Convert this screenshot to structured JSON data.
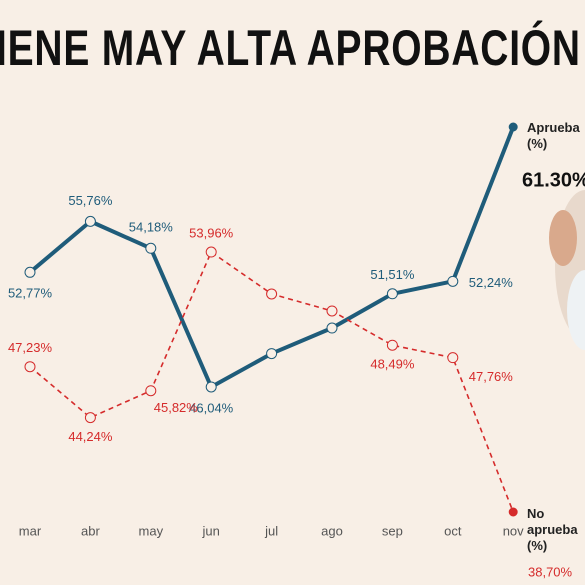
{
  "chart_data": {
    "type": "line",
    "title": "IENE MAY ALTA APROBACIÓN",
    "categories": [
      "mar",
      "abr",
      "may",
      "jun",
      "jul",
      "ago",
      "sep",
      "oct",
      "nov"
    ],
    "ylim": [
      36,
      64
    ],
    "series": [
      {
        "name": "Aprueba (%)",
        "color": "#1f5c7a",
        "dash": false,
        "values": [
          52.77,
          55.76,
          54.18,
          46.04,
          48.0,
          49.5,
          51.51,
          52.24,
          61.3
        ],
        "value_labels": [
          "52,77%",
          "55,76%",
          "54,18%",
          "46,04%",
          null,
          null,
          "51,51%",
          "52,24%",
          "61.30%"
        ]
      },
      {
        "name": "No aprueba (%)",
        "color": "#d52b2b",
        "dash": true,
        "values": [
          47.23,
          44.24,
          45.82,
          53.96,
          51.5,
          50.5,
          48.49,
          47.76,
          38.7
        ],
        "value_labels": [
          "47,23%",
          "44,24%",
          "45,82%",
          "53,96%",
          null,
          null,
          "48,49%",
          "47,76%",
          "38,70%"
        ]
      }
    ]
  }
}
